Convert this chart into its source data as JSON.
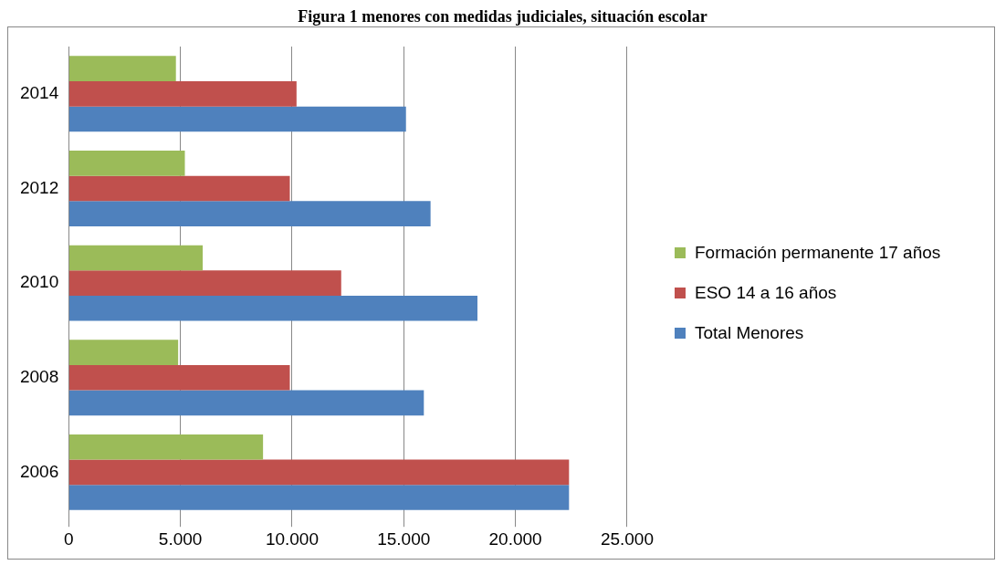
{
  "chart_data": {
    "type": "bar",
    "orientation": "horizontal",
    "title": "Figura 1 menores con medidas judiciales, situación escolar",
    "categories": [
      "2014",
      "2012",
      "2010",
      "2008",
      "2006"
    ],
    "series": [
      {
        "name": "Formación permanente 17 años",
        "color": "#9bbb59",
        "values": [
          4800,
          5200,
          6000,
          4900,
          8700
        ]
      },
      {
        "name": "ESO 14 a 16 años",
        "color": "#c0504d",
        "values": [
          10200,
          9900,
          12200,
          9900,
          22400
        ]
      },
      {
        "name": "Total Menores",
        "color": "#4f81bd",
        "values": [
          15100,
          16200,
          18300,
          15900,
          22400
        ]
      }
    ],
    "xlim": [
      0,
      25000
    ],
    "xticks": [
      0,
      {
        "value": 5000,
        "label": "5.000"
      },
      {
        "value": 10000,
        "label": "10.000"
      },
      {
        "value": 15000,
        "label": "15.000"
      },
      {
        "value": 20000,
        "label": "20.000"
      },
      {
        "value": 25000,
        "label": "25.000"
      }
    ],
    "grid": "x",
    "legend": "right"
  }
}
